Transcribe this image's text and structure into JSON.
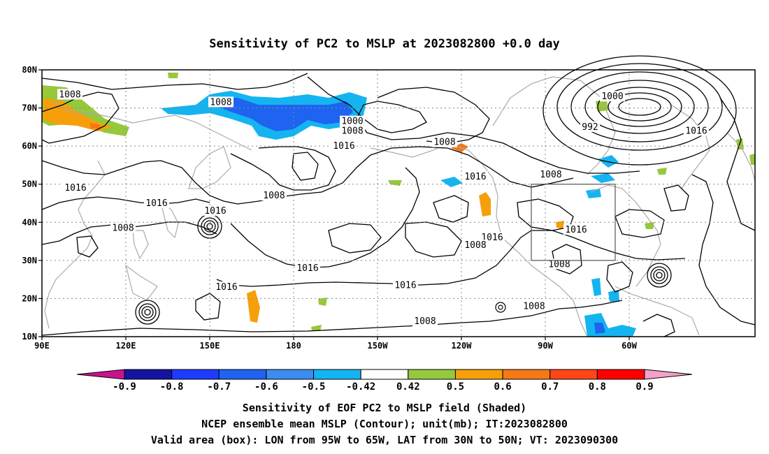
{
  "title": "Sensitivity of PC2 to MSLP at 2023082800 +0.0 day",
  "lat_labels": [
    "80N",
    "70N",
    "60N",
    "50N",
    "40N",
    "30N",
    "20N",
    "10N"
  ],
  "lon_labels": [
    "90E",
    "120E",
    "150E",
    "180",
    "150W",
    "120W",
    "90W",
    "60W"
  ],
  "contour_labels": [
    {
      "text": "1008",
      "lon": 100,
      "lat": 73.5
    },
    {
      "text": "1008",
      "lon": 154,
      "lat": 71.5
    },
    {
      "text": "1000",
      "lon": 201,
      "lat": 66.5
    },
    {
      "text": "1008",
      "lon": 201,
      "lat": 64
    },
    {
      "text": "1016",
      "lon": 198,
      "lat": 60
    },
    {
      "text": "1008",
      "lon": 234,
      "lat": 61
    },
    {
      "text": "1000",
      "lon": 294,
      "lat": 73
    },
    {
      "text": "992",
      "lon": 286,
      "lat": 65
    },
    {
      "text": "1016",
      "lon": 324,
      "lat": 64
    },
    {
      "text": "1008",
      "lon": 272,
      "lat": 52.5
    },
    {
      "text": "1016",
      "lon": 245,
      "lat": 52
    },
    {
      "text": "1016",
      "lon": 102,
      "lat": 49
    },
    {
      "text": "1008",
      "lon": 173,
      "lat": 47
    },
    {
      "text": "1016",
      "lon": 131,
      "lat": 45
    },
    {
      "text": "1016",
      "lon": 152,
      "lat": 43
    },
    {
      "text": "1016",
      "lon": 281,
      "lat": 38
    },
    {
      "text": "1008",
      "lon": 119,
      "lat": 38.5
    },
    {
      "text": "1016",
      "lon": 251,
      "lat": 36
    },
    {
      "text": "1008",
      "lon": 245,
      "lat": 34
    },
    {
      "text": "1008",
      "lon": 275,
      "lat": 29
    },
    {
      "text": "1016",
      "lon": 185,
      "lat": 28
    },
    {
      "text": "1016",
      "lon": 156,
      "lat": 23
    },
    {
      "text": "1016",
      "lon": 220,
      "lat": 23.5
    },
    {
      "text": "1008",
      "lon": 266,
      "lat": 18
    },
    {
      "text": "1008",
      "lon": 227,
      "lat": 14
    }
  ],
  "valid_box": {
    "lon_min": 265,
    "lon_max": 295,
    "lat_min": 30,
    "lat_max": 50
  },
  "colorbar": {
    "levels": [
      "-0.9",
      "-0.8",
      "-0.7",
      "-0.6",
      "-0.5",
      "-0.42",
      "0.42",
      "0.5",
      "0.6",
      "0.7",
      "0.8",
      "0.9"
    ],
    "low_color": "#c8148c",
    "high_color": "#f5a0c8",
    "colors": [
      "#1414a0",
      "#1e3cff",
      "#1e64f0",
      "#3c8cf0",
      "#14b4f0",
      "#ffffff",
      "#96c83c",
      "#f5a00a",
      "#f57814",
      "#ff4614",
      "#ff0000"
    ]
  },
  "captions": [
    "Sensitivity of EOF PC2 to MSLP field (Shaded)",
    "NCEP ensemble mean MSLP (Contour); unit(mb); IT:2023082800",
    "Valid area (box): LON from 95W to 65W, LAT from 30N to 50N; VT: 2023090300"
  ]
}
